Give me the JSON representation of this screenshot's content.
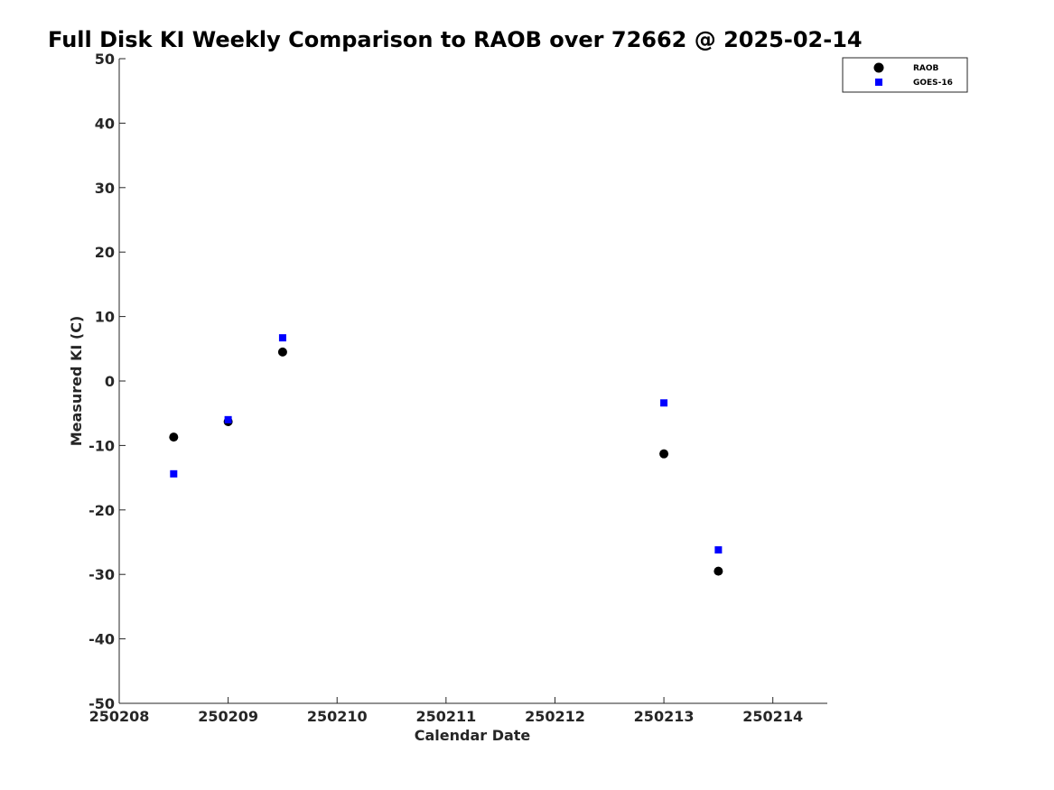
{
  "chart_data": {
    "type": "scatter",
    "title": "Full Disk KI Weekly Comparison to RAOB over 72662 @ 2025-02-14",
    "xlabel": "Calendar Date",
    "ylabel": "Measured KI (C)",
    "xlim": [
      250208,
      250214.5
    ],
    "ylim": [
      -50,
      50
    ],
    "x_ticks": [
      "250208",
      "250209",
      "250210",
      "250211",
      "250212",
      "250213",
      "250214"
    ],
    "y_ticks": [
      "50",
      "40",
      "30",
      "20",
      "10",
      "0",
      "-10",
      "-20",
      "-30",
      "-40",
      "-50"
    ],
    "grid": false,
    "legend_position": "top-right",
    "series": [
      {
        "name": "RAOB",
        "marker": "circle",
        "color": "#000000",
        "points": [
          {
            "x": 250208.5,
            "y": -8.7
          },
          {
            "x": 250209.0,
            "y": -6.3
          },
          {
            "x": 250209.5,
            "y": 4.5
          },
          {
            "x": 250213.0,
            "y": -11.3
          },
          {
            "x": 250213.5,
            "y": -29.5
          }
        ]
      },
      {
        "name": "GOES-16",
        "marker": "square",
        "color": "#0000ff",
        "points": [
          {
            "x": 250208.5,
            "y": -14.4
          },
          {
            "x": 250209.0,
            "y": -6.0
          },
          {
            "x": 250209.5,
            "y": 6.7
          },
          {
            "x": 250213.0,
            "y": -3.4
          },
          {
            "x": 250213.5,
            "y": -26.2
          }
        ]
      }
    ]
  }
}
